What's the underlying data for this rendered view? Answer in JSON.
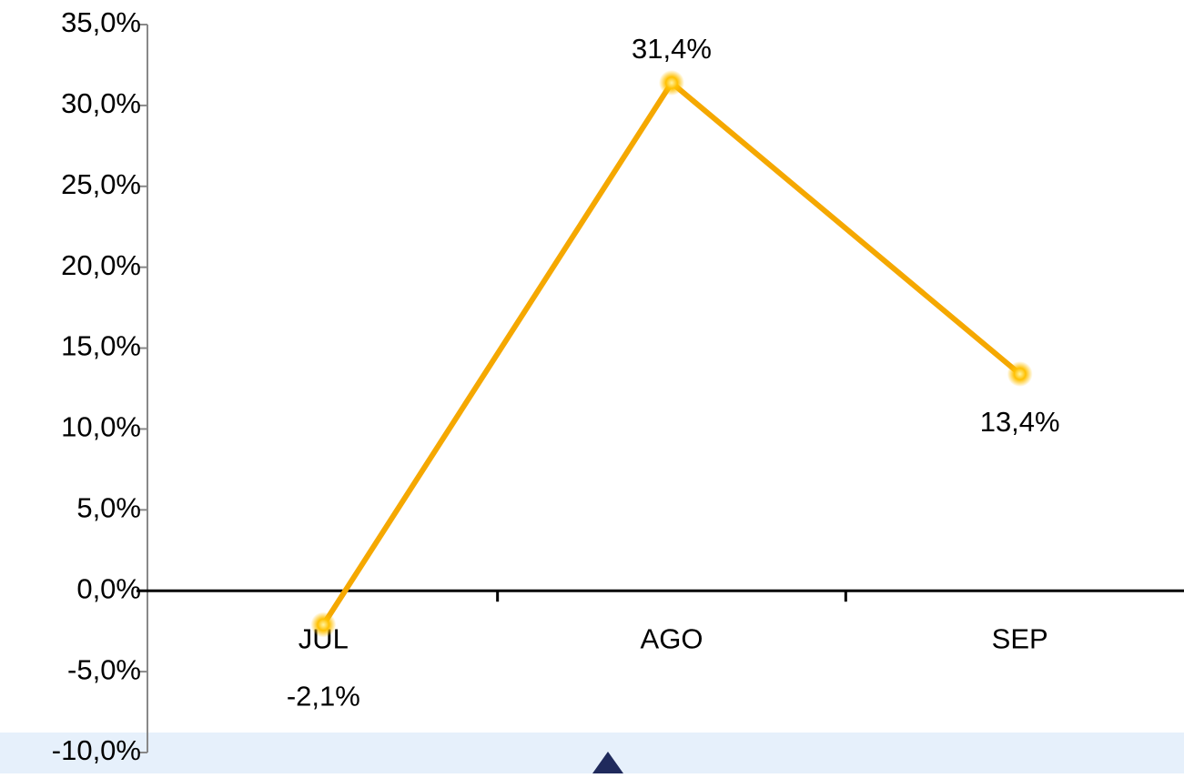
{
  "chart_data": {
    "type": "line",
    "categories": [
      "JUL",
      "AGO",
      "SEP"
    ],
    "series": [
      {
        "name": "",
        "color": "#f5a800",
        "values": [
          -2.1,
          31.4,
          13.4
        ],
        "value_labels": [
          "-2,1%",
          "31,4%",
          "13,4%"
        ]
      }
    ],
    "ylim": [
      -10,
      35
    ],
    "yticks": [
      {
        "value": -10,
        "label": "-10,0%"
      },
      {
        "value": -5,
        "label": "-5,0%"
      },
      {
        "value": 0,
        "label": "0,0%"
      },
      {
        "value": 5,
        "label": "5,0%"
      },
      {
        "value": 10,
        "label": "10,0%"
      },
      {
        "value": 15,
        "label": "15,0%"
      },
      {
        "value": 20,
        "label": "20,0%"
      },
      {
        "value": 25,
        "label": "25,0%"
      },
      {
        "value": 30,
        "label": "30,0%"
      },
      {
        "value": 35,
        "label": "35,0%"
      }
    ]
  }
}
